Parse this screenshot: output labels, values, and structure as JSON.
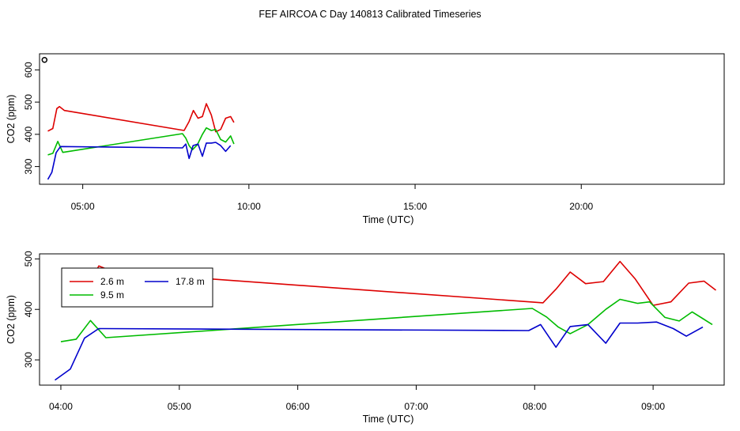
{
  "figure_title": "FEF AIRCOA C  Day 140813  Calibrated Timeseries",
  "chart_data": [
    {
      "type": "line",
      "xlabel": "Time (UTC)",
      "ylabel": "CO2 (ppm)",
      "xlim": [
        3.7,
        24.3
      ],
      "ylim": [
        245,
        650
      ],
      "xticks": [
        {
          "value": 5,
          "label": "05:00"
        },
        {
          "value": 10,
          "label": "10:00"
        },
        {
          "value": 15,
          "label": "15:00"
        },
        {
          "value": 20,
          "label": "20:00"
        }
      ],
      "yticks": [
        {
          "value": 300,
          "label": "300"
        },
        {
          "value": 400,
          "label": "400"
        },
        {
          "value": 500,
          "label": "500"
        },
        {
          "value": 600,
          "label": "600"
        }
      ],
      "outlier": {
        "x": 3.85,
        "y": 631
      },
      "series": [
        {
          "color": "#dd0000",
          "points": [
            [
              3.95,
              410
            ],
            [
              4.1,
              418
            ],
            [
              4.22,
              480
            ],
            [
              4.3,
              486
            ],
            [
              4.45,
              474
            ],
            [
              8.05,
              412
            ],
            [
              8.2,
              440
            ],
            [
              8.33,
              474
            ],
            [
              8.47,
              450
            ],
            [
              8.6,
              455
            ],
            [
              8.72,
              495
            ],
            [
              8.87,
              460
            ],
            [
              9.0,
              408
            ],
            [
              9.15,
              415
            ],
            [
              9.3,
              450
            ],
            [
              9.45,
              455
            ],
            [
              9.55,
              437
            ]
          ]
        },
        {
          "color": "#00bb00",
          "points": [
            [
              3.95,
              336
            ],
            [
              4.1,
              341
            ],
            [
              4.25,
              378
            ],
            [
              4.4,
              344
            ],
            [
              8.0,
              402
            ],
            [
              8.1,
              388
            ],
            [
              8.2,
              365
            ],
            [
              8.3,
              352
            ],
            [
              8.45,
              368
            ],
            [
              8.6,
              400
            ],
            [
              8.72,
              420
            ],
            [
              8.87,
              412
            ],
            [
              9.0,
              415
            ],
            [
              9.15,
              384
            ],
            [
              9.3,
              376
            ],
            [
              9.45,
              395
            ],
            [
              9.55,
              370
            ]
          ]
        },
        {
          "color": "#0000cc",
          "points": [
            [
              3.95,
              260
            ],
            [
              4.07,
              282
            ],
            [
              4.2,
              343
            ],
            [
              4.33,
              362
            ],
            [
              8.0,
              358
            ],
            [
              8.1,
              370
            ],
            [
              8.2,
              325
            ],
            [
              8.32,
              365
            ],
            [
              8.47,
              370
            ],
            [
              8.6,
              332
            ],
            [
              8.72,
              373
            ],
            [
              8.87,
              373
            ],
            [
              9.0,
              375
            ],
            [
              9.15,
              365
            ],
            [
              9.3,
              347
            ],
            [
              9.45,
              365
            ]
          ]
        }
      ]
    },
    {
      "type": "line",
      "xlabel": "Time (UTC)",
      "ylabel": "CO2 (ppm)",
      "xlim": [
        3.82,
        9.6
      ],
      "ylim": [
        250,
        510
      ],
      "xticks": [
        {
          "value": 4,
          "label": "04:00"
        },
        {
          "value": 5,
          "label": "05:00"
        },
        {
          "value": 6,
          "label": "06:00"
        },
        {
          "value": 7,
          "label": "07:00"
        },
        {
          "value": 8,
          "label": "08:00"
        },
        {
          "value": 9,
          "label": "09:00"
        }
      ],
      "yticks": [
        {
          "value": 300,
          "label": "300"
        },
        {
          "value": 400,
          "label": "400"
        },
        {
          "value": 500,
          "label": "500"
        }
      ],
      "legend": {
        "placement": "top-left",
        "entries": [
          "2.6 m",
          "17.8 m",
          "9.5 m"
        ]
      },
      "series": [
        {
          "name": "2.6 m",
          "color": "#dd0000",
          "points": [
            [
              4.05,
              407
            ],
            [
              4.18,
              418
            ],
            [
              4.32,
              486
            ],
            [
              4.45,
              474
            ],
            [
              8.07,
              413
            ],
            [
              8.18,
              440
            ],
            [
              8.3,
              474
            ],
            [
              8.43,
              451
            ],
            [
              8.58,
              455
            ],
            [
              8.72,
              495
            ],
            [
              8.85,
              460
            ],
            [
              9.0,
              408
            ],
            [
              9.15,
              415
            ],
            [
              9.3,
              452
            ],
            [
              9.43,
              456
            ],
            [
              9.53,
              438
            ]
          ]
        },
        {
          "name": "9.5 m",
          "color": "#00bb00",
          "points": [
            [
              4.0,
              336
            ],
            [
              4.13,
              341
            ],
            [
              4.25,
              378
            ],
            [
              4.38,
              344
            ],
            [
              7.98,
              402
            ],
            [
              8.1,
              385
            ],
            [
              8.2,
              365
            ],
            [
              8.3,
              352
            ],
            [
              8.45,
              370
            ],
            [
              8.6,
              400
            ],
            [
              8.72,
              420
            ],
            [
              8.87,
              412
            ],
            [
              8.97,
              415
            ],
            [
              9.1,
              384
            ],
            [
              9.22,
              377
            ],
            [
              9.33,
              395
            ],
            [
              9.5,
              370
            ]
          ]
        },
        {
          "name": "17.8 m",
          "color": "#0000cc",
          "points": [
            [
              3.95,
              260
            ],
            [
              4.08,
              282
            ],
            [
              4.2,
              343
            ],
            [
              4.32,
              362
            ],
            [
              7.95,
              358
            ],
            [
              8.05,
              370
            ],
            [
              8.18,
              325
            ],
            [
              8.3,
              366
            ],
            [
              8.45,
              370
            ],
            [
              8.6,
              333
            ],
            [
              8.72,
              373
            ],
            [
              8.87,
              373
            ],
            [
              9.03,
              375
            ],
            [
              9.17,
              362
            ],
            [
              9.28,
              347
            ],
            [
              9.42,
              365
            ]
          ]
        }
      ]
    }
  ]
}
